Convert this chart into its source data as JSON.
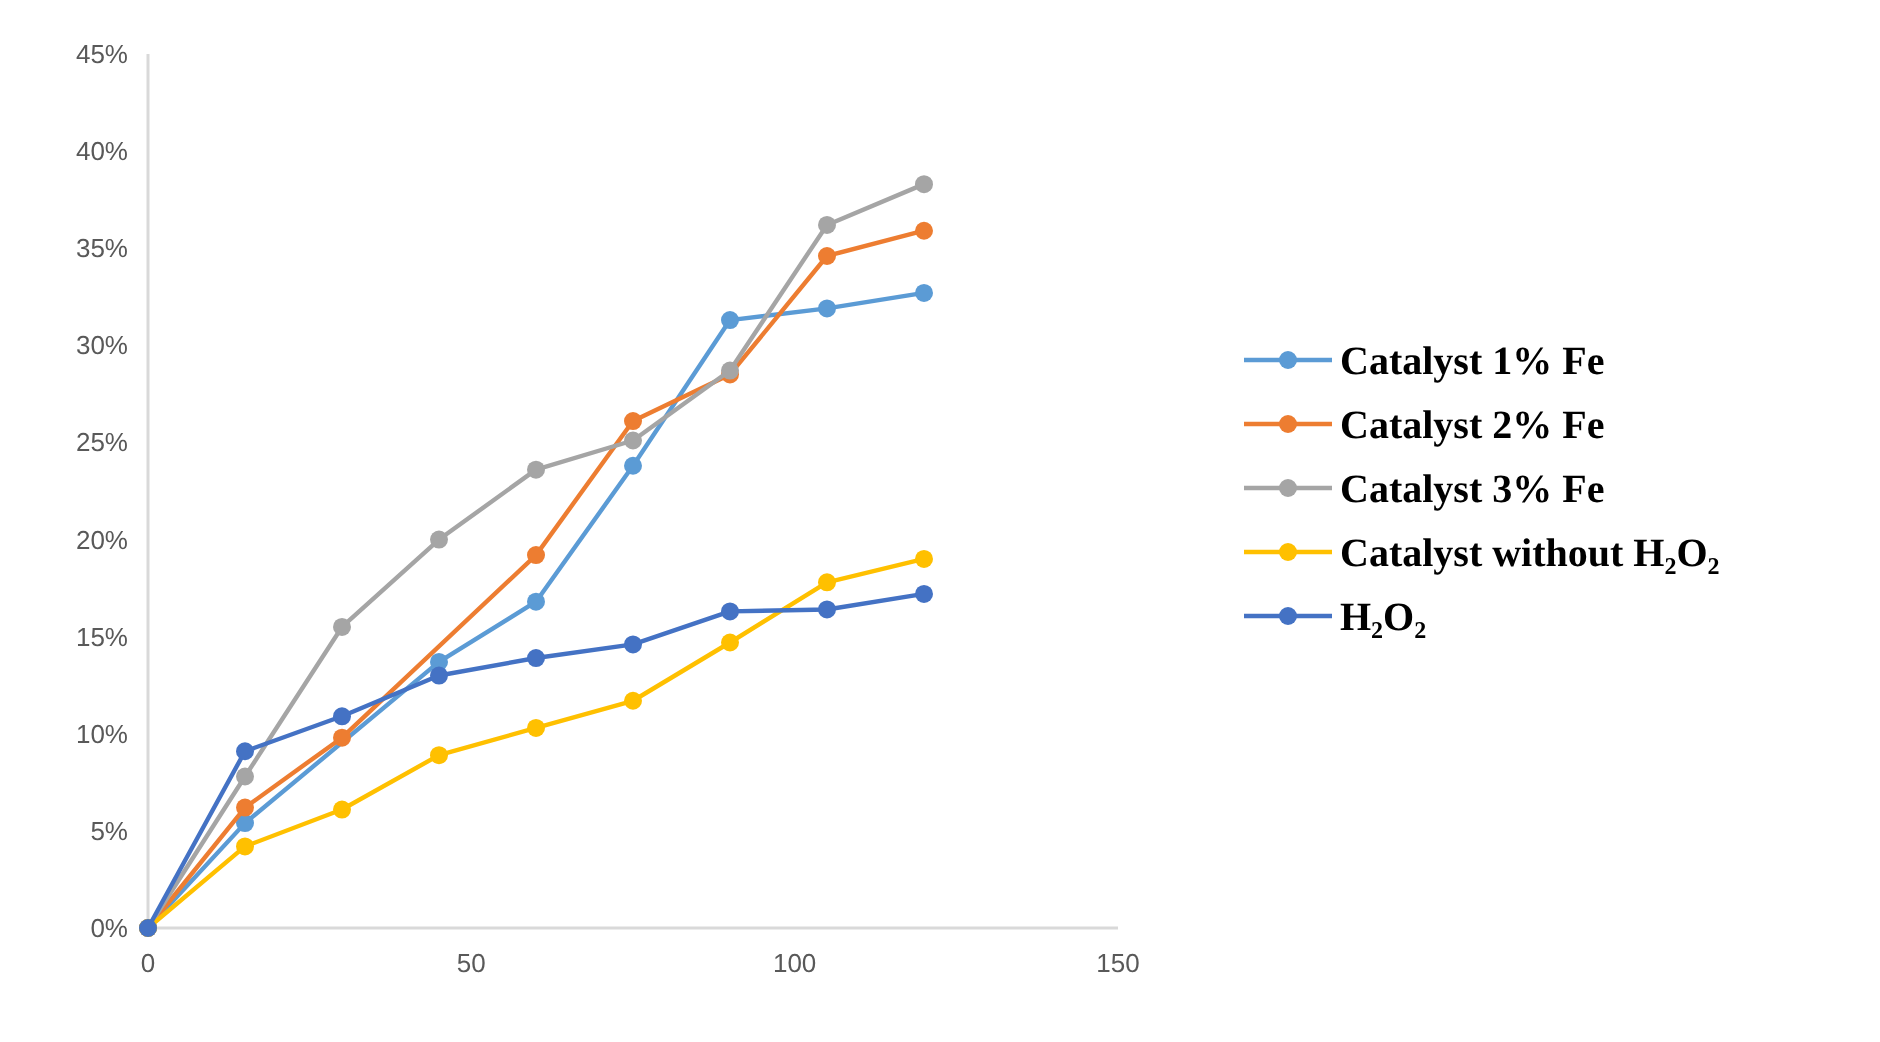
{
  "chart_data": {
    "type": "line",
    "x": [
      0,
      15,
      30,
      45,
      60,
      75,
      90,
      105,
      120
    ],
    "series": [
      {
        "name": "Catalyst 1% Fe",
        "color": "#5b9bd5",
        "values": [
          0,
          5.4,
          null,
          13.7,
          16.8,
          23.8,
          31.3,
          31.9,
          32.7
        ]
      },
      {
        "name": "Catalyst 2% Fe",
        "color": "#ed7d31",
        "values": [
          0,
          6.2,
          9.8,
          null,
          19.2,
          26.1,
          28.5,
          34.6,
          35.9
        ]
      },
      {
        "name": "Catalyst 3% Fe",
        "color": "#a5a5a5",
        "values": [
          0,
          7.8,
          15.5,
          20.0,
          23.6,
          25.1,
          28.7,
          36.2,
          38.3
        ]
      },
      {
        "name": "Catalyst without H₂O₂",
        "color": "#ffc000",
        "values": [
          0,
          4.2,
          6.1,
          8.9,
          10.3,
          11.7,
          14.7,
          17.8,
          19.0
        ]
      },
      {
        "name": "H₂O₂",
        "color": "#4472c4",
        "values": [
          0,
          9.1,
          10.9,
          13.0,
          13.9,
          14.6,
          16.3,
          16.4,
          17.2
        ]
      }
    ],
    "xlim": [
      0,
      150
    ],
    "xticks": [
      0,
      50,
      100,
      150
    ],
    "ylim": [
      0,
      45
    ],
    "yticks": [
      {
        "value": 0,
        "label": "0%"
      },
      {
        "value": 5,
        "label": "5%"
      },
      {
        "value": 10,
        "label": "10%"
      },
      {
        "value": 15,
        "label": "15%"
      },
      {
        "value": 20,
        "label": "20%"
      },
      {
        "value": 25,
        "label": "25%"
      },
      {
        "value": 30,
        "label": "30%"
      },
      {
        "value": 35,
        "label": "35%"
      },
      {
        "value": 40,
        "label": "40%"
      },
      {
        "value": 45,
        "label": "45%"
      }
    ],
    "grid": false,
    "legend": "right",
    "marker": "circle",
    "line_style": "solid"
  }
}
